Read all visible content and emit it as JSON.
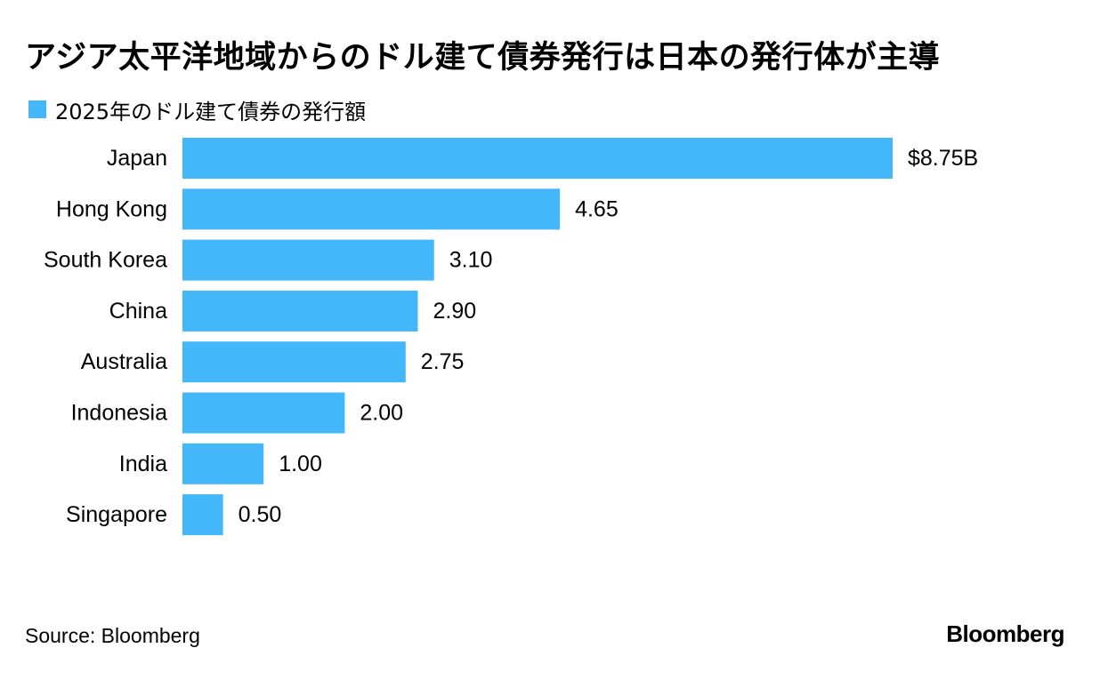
{
  "colors": {
    "bar": "#44b6fa"
  },
  "chart_data": {
    "type": "bar",
    "orientation": "horizontal",
    "title": "アジア太平洋地域からのドル建て債券発行は日本の発行体が主導",
    "categories": [
      "Japan",
      "Hong Kong",
      "South Korea",
      "China",
      "Australia",
      "Indonesia",
      "India",
      "Singapore"
    ],
    "series": [
      {
        "name": "2025年のドル建て債券の発行額",
        "values": [
          8.75,
          4.65,
          3.1,
          2.9,
          2.75,
          2.0,
          1.0,
          0.5
        ]
      }
    ],
    "value_labels": [
      "$8.75B",
      "4.65",
      "3.10",
      "2.90",
      "2.75",
      "2.00",
      "1.00",
      "0.50"
    ],
    "xlim": [
      0,
      8.75
    ],
    "grid": false,
    "legend_position": "top-left"
  },
  "footer": {
    "source": "Source: Bloomberg",
    "brand": "Bloomberg"
  }
}
